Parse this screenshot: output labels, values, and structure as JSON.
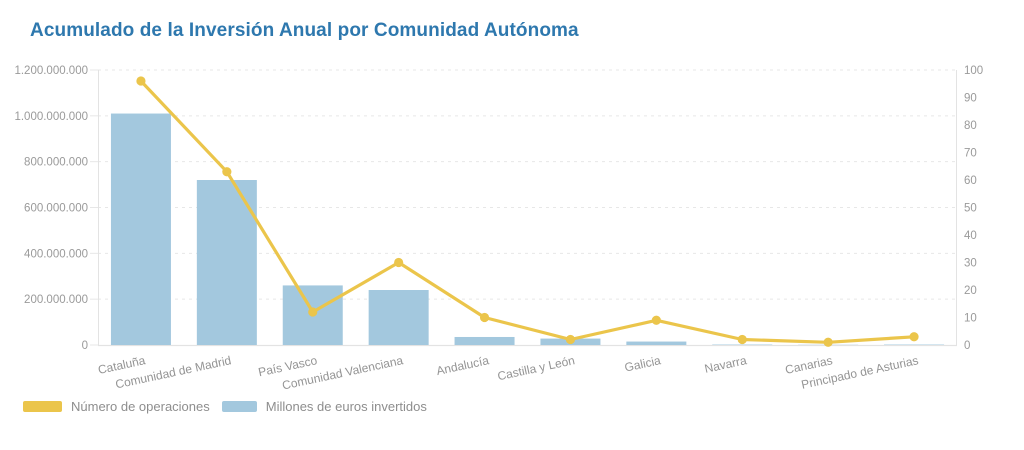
{
  "title": "Acumulado de la Inversión Anual por Comunidad Autónoma",
  "colors": {
    "title": "#2E78AE",
    "bar": "#A3C8DE",
    "line": "#EBC54B",
    "axis_text": "#9A9A9A",
    "x_label": "#949494",
    "grid": "#E7E7E7",
    "border": "#E3E3E3",
    "legend_text": "#8E8E8E",
    "background": "#FFFFFF"
  },
  "legend": {
    "items": [
      {
        "label": "Número de operaciones",
        "series": "line"
      },
      {
        "label": "Millones de euros invertidos",
        "series": "bar"
      }
    ]
  },
  "chart_data": {
    "type": "bar",
    "subtype": "combo-bar-line-dual-axis",
    "title": "Acumulado de la Inversión Anual por Comunidad Autónoma",
    "categories": [
      "Cataluña",
      "Comunidad de Madrid",
      "País Vasco",
      "Comunidad Valenciana",
      "Andalucía",
      "Castilla y León",
      "Galicia",
      "Navarra",
      "Canarias",
      "Principado de Asturias"
    ],
    "series": [
      {
        "name": "Millones de euros invertidos",
        "type": "bar",
        "axis": "left",
        "values": [
          1010000000,
          720000000,
          260000000,
          240000000,
          35000000,
          28000000,
          15000000,
          2000000,
          1000000,
          2000000
        ]
      },
      {
        "name": "Número de operaciones",
        "type": "line",
        "axis": "right",
        "values": [
          96,
          63,
          12,
          30,
          10,
          2,
          9,
          2,
          1,
          3
        ]
      }
    ],
    "left_axis": {
      "min": 0,
      "max": 1200000000,
      "tick_step": 200000000,
      "tick_labels_top_to_bottom": [
        "1.200.000.000",
        "1.000.000.000",
        "800.000.000",
        "600.000.000",
        "400.000.000",
        "200.000.000",
        "0"
      ]
    },
    "right_axis": {
      "min": 0,
      "max": 100,
      "tick_step": 10,
      "tick_labels_top_to_bottom": [
        "100",
        "90",
        "80",
        "70",
        "60",
        "50",
        "40",
        "30",
        "20",
        "10",
        "0"
      ]
    },
    "grid": "horizontal dashed, left-axis intervals only",
    "legend_position": "bottom-left",
    "x_label_rotation_deg": -12
  }
}
